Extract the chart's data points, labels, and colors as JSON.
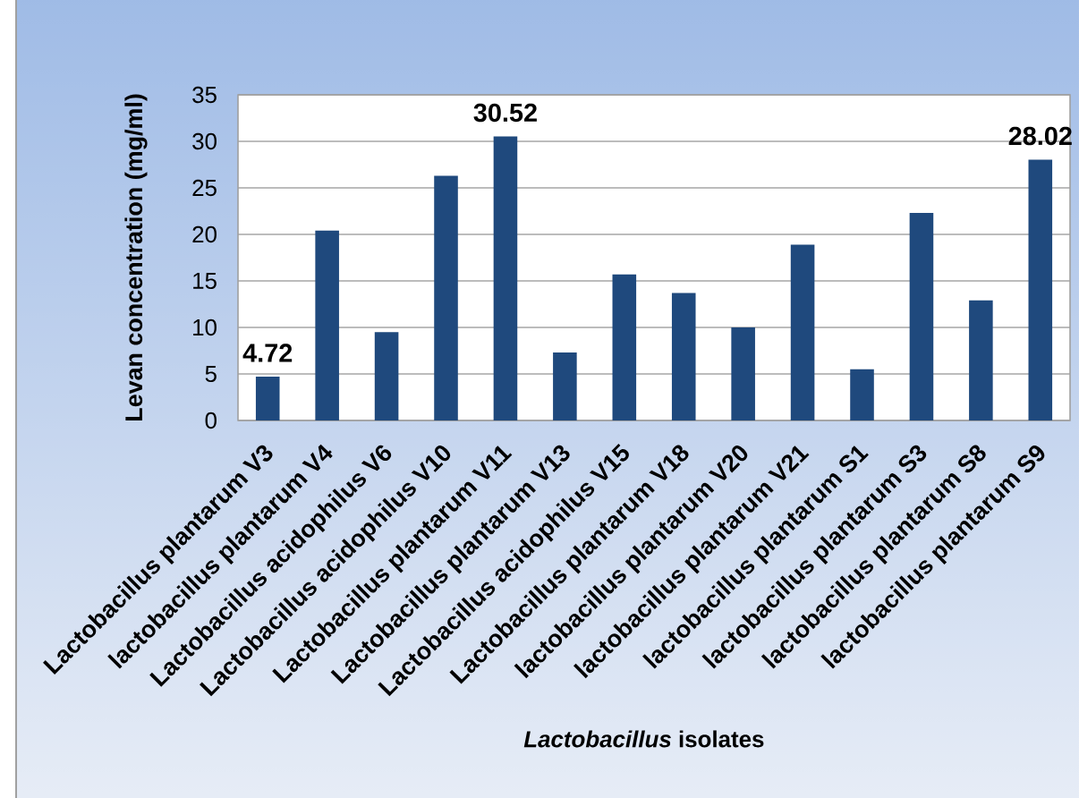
{
  "chart_data": {
    "type": "bar",
    "xlabel": "*Lactobacillus* isolates",
    "ylabel": "Levan concentration (mg/ml)",
    "categories": [
      "Lactobacillus plantarum V3",
      "lactobacillus plantarum V4",
      "Lactobacillus acidophilus V6",
      "Lactobacillus acidophilus V10",
      "Lactobacillus plantarum V11",
      "Lactobacillus plantarum V13",
      "Lactobacillus acidophilus V15",
      "Lactobacillus plantarum V18",
      "lactobacillus plantarum V20",
      "lactobacillus plantarum V21",
      "lactobacillus plantarum S1",
      "lactobacillus plantarum S3",
      "lactobacillus plantarum S8",
      "lactobacillus plantarum S9"
    ],
    "values": [
      4.72,
      20.4,
      9.5,
      26.3,
      30.52,
      7.3,
      15.7,
      13.7,
      10.0,
      18.9,
      5.5,
      22.3,
      12.9,
      28.02
    ],
    "value_labels": [
      "4.72",
      null,
      null,
      null,
      "30.52",
      null,
      null,
      null,
      null,
      null,
      null,
      null,
      null,
      "28.02"
    ],
    "color": "#1f497d",
    "ylim": [
      0,
      35
    ],
    "yticks": [
      0,
      5,
      10,
      15,
      20,
      25,
      30,
      35
    ],
    "grid": "y"
  }
}
